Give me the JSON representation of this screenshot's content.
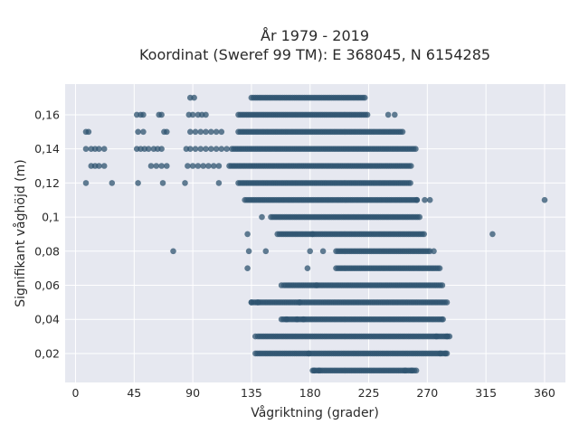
{
  "chart_data": {
    "type": "scatter",
    "title": "År 1979 - 2019",
    "subtitle": "Koordinat (Sweref 99 TM): E 368045, N 6154285",
    "xlabel": "Vågriktning (grader)",
    "ylabel": "Signifikant våghöjd (m)",
    "xlim": [
      -8,
      376
    ],
    "ylim": [
      0.003,
      0.178
    ],
    "x_ticks": [
      0,
      45,
      90,
      135,
      180,
      225,
      270,
      315,
      360
    ],
    "x_tick_labels": [
      "0",
      "45",
      "90",
      "135",
      "180",
      "225",
      "270",
      "315",
      "360"
    ],
    "y_ticks": [
      0.02,
      0.04,
      0.06,
      0.08,
      0.1,
      0.12,
      0.14,
      0.16
    ],
    "y_tick_labels": [
      "0,02",
      "0,04",
      "0,06",
      "0,08",
      "0,1",
      "0,12",
      "0,14",
      "0,16"
    ],
    "grid": true,
    "colors": {
      "marker": "#2f5470",
      "plot_background": "#e6e8f0",
      "grid": "#ffffff"
    },
    "series": [
      {
        "segments": [
          {
            "y": 0.01,
            "x": [
              182,
              262
            ]
          },
          {
            "y": 0.02,
            "x": [
              138,
              285
            ]
          },
          {
            "y": 0.03,
            "x": [
              140,
              288
            ]
          },
          {
            "y": 0.04,
            "x": [
              158,
              282
            ]
          },
          {
            "y": 0.05,
            "x": [
              135,
              285
            ]
          },
          {
            "y": 0.06,
            "x": [
              160,
              282
            ]
          },
          {
            "y": 0.07,
            "x": [
              200,
              280
            ]
          },
          {
            "y": 0.08,
            "x": [
              200,
              272
            ]
          },
          {
            "y": 0.09,
            "x": [
              155,
              268
            ]
          },
          {
            "y": 0.1,
            "x": [
              150,
              265
            ]
          },
          {
            "y": 0.11,
            "x": [
              130,
              262
            ]
          },
          {
            "y": 0.12,
            "x": [
              125,
              258
            ]
          },
          {
            "y": 0.13,
            "x": [
              118,
              258
            ]
          },
          {
            "y": 0.14,
            "x": [
              120,
              262
            ]
          },
          {
            "y": 0.15,
            "x": [
              125,
              252
            ]
          },
          {
            "y": 0.16,
            "x": [
              125,
              225
            ]
          },
          {
            "y": 0.17,
            "x": [
              135,
              222
            ]
          }
        ],
        "points": [
          [
            8,
            0.15
          ],
          [
            10,
            0.15
          ],
          [
            8,
            0.14
          ],
          [
            12,
            0.14
          ],
          [
            15,
            0.14
          ],
          [
            18,
            0.14
          ],
          [
            22,
            0.14
          ],
          [
            12,
            0.13
          ],
          [
            15,
            0.13
          ],
          [
            18,
            0.13
          ],
          [
            22,
            0.13
          ],
          [
            8,
            0.12
          ],
          [
            28,
            0.12
          ],
          [
            47,
            0.16
          ],
          [
            50,
            0.16
          ],
          [
            52,
            0.16
          ],
          [
            48,
            0.15
          ],
          [
            52,
            0.15
          ],
          [
            47,
            0.14
          ],
          [
            50,
            0.14
          ],
          [
            53,
            0.14
          ],
          [
            56,
            0.14
          ],
          [
            60,
            0.14
          ],
          [
            63,
            0.14
          ],
          [
            66,
            0.14
          ],
          [
            48,
            0.12
          ],
          [
            64,
            0.16
          ],
          [
            66,
            0.16
          ],
          [
            68,
            0.15
          ],
          [
            70,
            0.15
          ],
          [
            58,
            0.13
          ],
          [
            62,
            0.13
          ],
          [
            66,
            0.13
          ],
          [
            70,
            0.13
          ],
          [
            67,
            0.12
          ],
          [
            75,
            0.08
          ],
          [
            88,
            0.17
          ],
          [
            91,
            0.17
          ],
          [
            87,
            0.16
          ],
          [
            90,
            0.16
          ],
          [
            94,
            0.16
          ],
          [
            97,
            0.16
          ],
          [
            100,
            0.16
          ],
          [
            88,
            0.15
          ],
          [
            92,
            0.15
          ],
          [
            96,
            0.15
          ],
          [
            100,
            0.15
          ],
          [
            104,
            0.15
          ],
          [
            108,
            0.15
          ],
          [
            112,
            0.15
          ],
          [
            85,
            0.14
          ],
          [
            88,
            0.14
          ],
          [
            92,
            0.14
          ],
          [
            96,
            0.14
          ],
          [
            100,
            0.14
          ],
          [
            104,
            0.14
          ],
          [
            108,
            0.14
          ],
          [
            112,
            0.14
          ],
          [
            116,
            0.14
          ],
          [
            86,
            0.13
          ],
          [
            90,
            0.13
          ],
          [
            94,
            0.13
          ],
          [
            98,
            0.13
          ],
          [
            102,
            0.13
          ],
          [
            106,
            0.13
          ],
          [
            110,
            0.13
          ],
          [
            84,
            0.12
          ],
          [
            110,
            0.12
          ],
          [
            132,
            0.09
          ],
          [
            133,
            0.08
          ],
          [
            132,
            0.07
          ],
          [
            135,
            0.05
          ],
          [
            140,
            0.05
          ],
          [
            138,
            0.03
          ],
          [
            143,
            0.1
          ],
          [
            146,
            0.08
          ],
          [
            158,
            0.06
          ],
          [
            162,
            0.04
          ],
          [
            170,
            0.04
          ],
          [
            175,
            0.04
          ],
          [
            178,
            0.07
          ],
          [
            180,
            0.08
          ],
          [
            182,
            0.09
          ],
          [
            185,
            0.06
          ],
          [
            190,
            0.08
          ],
          [
            172,
            0.05
          ],
          [
            179,
            0.02
          ],
          [
            183,
            0.01
          ],
          [
            187,
            0.01
          ],
          [
            240,
            0.16
          ],
          [
            245,
            0.16
          ],
          [
            253,
            0.01
          ],
          [
            258,
            0.01
          ],
          [
            262,
            0.11
          ],
          [
            268,
            0.11
          ],
          [
            272,
            0.11
          ],
          [
            275,
            0.08
          ],
          [
            277,
            0.03
          ],
          [
            282,
            0.04
          ],
          [
            285,
            0.03
          ],
          [
            280,
            0.02
          ],
          [
            284,
            0.02
          ],
          [
            320,
            0.09
          ],
          [
            360,
            0.11
          ]
        ]
      }
    ]
  }
}
